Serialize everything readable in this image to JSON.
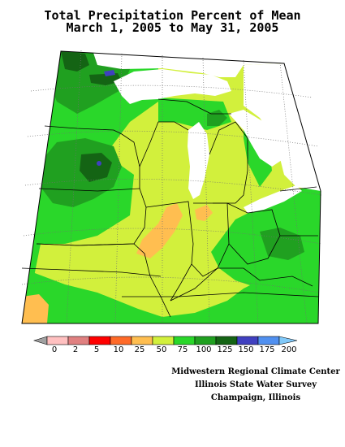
{
  "title": {
    "line1": "Total Precipitation Percent of Mean",
    "line2": "March 1, 2005 to May 31, 2005"
  },
  "legend": {
    "labels": [
      "0",
      "2",
      "5",
      "10",
      "25",
      "50",
      "75",
      "100",
      "125",
      "150",
      "175",
      "200"
    ],
    "colors": [
      "#a0a0a0",
      "#ffc0c0",
      "#e08080",
      "#ff0000",
      "#ff6a28",
      "#ffbe50",
      "#d2f03c",
      "#2ad72a",
      "#20a020",
      "#146414",
      "#4040c0",
      "#5090f0",
      "#80c8f8"
    ]
  },
  "credits": {
    "line1": "Midwestern Regional Climate Center",
    "line2": "Illinois State Water Survey",
    "line3": "Champaign, Illinois"
  },
  "map_colors": {
    "background_region": "#d2f03c",
    "green": "#2ad72a",
    "dark_green": "#20a020",
    "darkest_green": "#146414",
    "orange": "#ffbe50",
    "blue": "#4040c0",
    "red": "#ff0000",
    "water": "#ffffff",
    "boundary": "#000000",
    "grid": "#707070"
  }
}
